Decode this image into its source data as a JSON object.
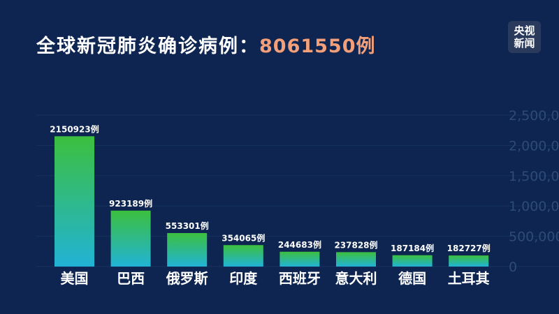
{
  "header": {
    "title_prefix": "全球新冠肺炎确诊病例：",
    "total": "8061550例"
  },
  "logo": {
    "line1": "央视",
    "line2": "新闻"
  },
  "colors": {
    "background": "#0d2550",
    "bar_top": "#3cbf3e",
    "bar_bottom": "#21b3d6",
    "axis_text": "#2e4a78",
    "total_text": "#f3a07a"
  },
  "chart_data": {
    "type": "bar",
    "title": "全球新冠肺炎确诊病例：8061550例",
    "categories": [
      "美国",
      "巴西",
      "俄罗斯",
      "印度",
      "西班牙",
      "意大利",
      "德国",
      "土耳其"
    ],
    "values": [
      2150923,
      923189,
      553301,
      354065,
      244683,
      237828,
      187184,
      182727
    ],
    "data_labels": [
      "2150923例",
      "923189例",
      "553301例",
      "354065例",
      "244683例",
      "237828例",
      "187184例",
      "182727例"
    ],
    "y_ticks": [
      0,
      500000,
      1000000,
      1500000,
      2000000,
      2500000
    ],
    "y_tick_labels": [
      "0",
      "500,000",
      "1,000,000",
      "1,500,000",
      "2,000,000",
      "2,500,000"
    ],
    "ylim": [
      0,
      2500000
    ],
    "y_axis_position": "right",
    "grid": true
  }
}
